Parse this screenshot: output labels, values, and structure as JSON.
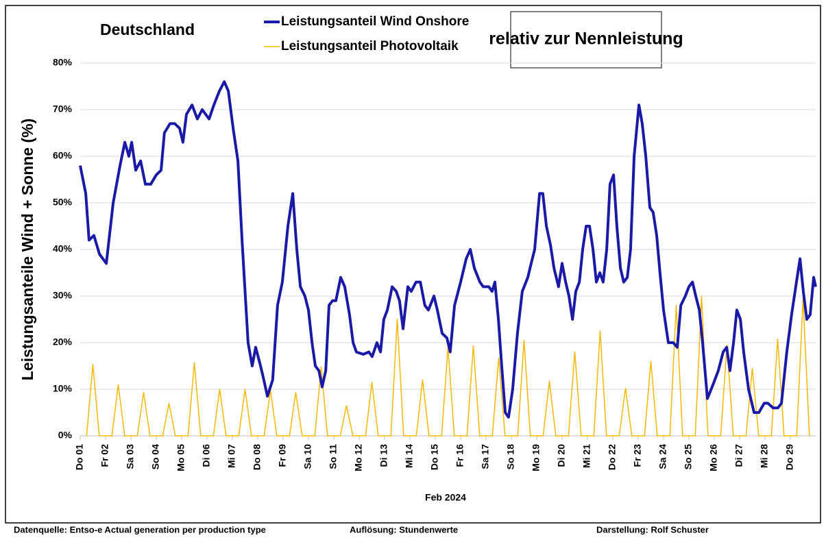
{
  "chart_data": {
    "type": "line",
    "title": "Deutschland",
    "annotation": "relativ zur Nennleistung",
    "ylabel": "Leistungsanteile Wind + Sonne (%)",
    "xlabel": "Feb 2024",
    "footer": [
      "Datenquelle: Entso-e  Actual generation per production type",
      "Auflösung: Stundenwerte",
      "Darstellung:  Rolf Schuster"
    ],
    "xlim": [
      0,
      29
    ],
    "ylim": [
      0,
      80
    ],
    "yticks": [
      {
        "value": 0,
        "label": "0%"
      },
      {
        "value": 10,
        "label": "10%"
      },
      {
        "value": 20,
        "label": "20%"
      },
      {
        "value": 30,
        "label": "30%"
      },
      {
        "value": 40,
        "label": "40%"
      },
      {
        "value": 50,
        "label": "50%"
      },
      {
        "value": 60,
        "label": "60%"
      },
      {
        "value": 70,
        "label": "70%"
      },
      {
        "value": 80,
        "label": "80%"
      }
    ],
    "xticks": [
      {
        "value": 0,
        "label": "Do 01"
      },
      {
        "value": 1,
        "label": "Fr 02"
      },
      {
        "value": 2,
        "label": "Sa 03"
      },
      {
        "value": 3,
        "label": "So 04"
      },
      {
        "value": 4,
        "label": "Mo 05"
      },
      {
        "value": 5,
        "label": "Di 06"
      },
      {
        "value": 6,
        "label": "Mi 07"
      },
      {
        "value": 7,
        "label": "Do 08"
      },
      {
        "value": 8,
        "label": "Fr 09"
      },
      {
        "value": 9,
        "label": "Sa 10"
      },
      {
        "value": 10,
        "label": "So 11"
      },
      {
        "value": 11,
        "label": "Mo 12"
      },
      {
        "value": 12,
        "label": "Di 13"
      },
      {
        "value": 13,
        "label": "Mi 14"
      },
      {
        "value": 14,
        "label": "Do 15"
      },
      {
        "value": 15,
        "label": "Fr 16"
      },
      {
        "value": 16,
        "label": "Sa 17"
      },
      {
        "value": 17,
        "label": "So 18"
      },
      {
        "value": 18,
        "label": "Mo 19"
      },
      {
        "value": 19,
        "label": "Di 20"
      },
      {
        "value": 20,
        "label": "Mi 21"
      },
      {
        "value": 21,
        "label": "Do 22"
      },
      {
        "value": 22,
        "label": "Fr 23"
      },
      {
        "value": 23,
        "label": "Sa 24"
      },
      {
        "value": 24,
        "label": "So 25"
      },
      {
        "value": 25,
        "label": "Mo 26"
      },
      {
        "value": 26,
        "label": "Di 27"
      },
      {
        "value": 27,
        "label": "Mi 28"
      },
      {
        "value": 28,
        "label": "Do 29"
      }
    ],
    "grid": true,
    "series": [
      {
        "name": "Leistungsanteil Photovoltaik",
        "color": "#f5b800",
        "width": 1.5,
        "x": [
          0.25,
          0.5,
          0.75,
          1.25,
          1.5,
          1.75,
          2.25,
          2.5,
          2.75,
          3.25,
          3.5,
          3.75,
          4.25,
          4.5,
          4.75,
          5.25,
          5.5,
          5.75,
          6.25,
          6.5,
          6.75,
          7.25,
          7.5,
          7.75,
          8.25,
          8.5,
          8.75,
          9.25,
          9.5,
          9.75,
          10.25,
          10.5,
          10.75,
          11.25,
          11.5,
          11.75,
          12.25,
          12.5,
          12.75,
          13.25,
          13.5,
          13.75,
          14.25,
          14.5,
          14.75,
          15.25,
          15.5,
          15.75,
          16.25,
          16.5,
          16.75,
          17.25,
          17.5,
          17.75,
          18.25,
          18.5,
          18.75,
          19.25,
          19.5,
          19.75,
          20.25,
          20.5,
          20.75,
          21.25,
          21.5,
          21.75,
          22.25,
          22.5,
          22.75,
          23.25,
          23.5,
          23.75,
          24.25,
          24.5,
          24.75,
          25.25,
          25.5,
          25.75,
          26.25,
          26.5,
          26.75,
          27.25,
          27.5,
          27.75,
          28.25,
          28.5,
          28.75
        ],
        "values": [
          0,
          15.3,
          0,
          0,
          11,
          0,
          0,
          9.3,
          0,
          0,
          7,
          0,
          0,
          15.7,
          0,
          0,
          10,
          0,
          0,
          10,
          0,
          0,
          9.8,
          0,
          0,
          9.3,
          0,
          0,
          14.8,
          0,
          0,
          6.5,
          0,
          0,
          11.5,
          0,
          0,
          25,
          0,
          0,
          12,
          0,
          0,
          19,
          0,
          0,
          19.3,
          0,
          0,
          16.7,
          0,
          0,
          20.5,
          0,
          0,
          11.7,
          0,
          0,
          18,
          0,
          0,
          22.5,
          0,
          0,
          10.2,
          0,
          0,
          16,
          0,
          0,
          28,
          0,
          0,
          30,
          0,
          0,
          19.5,
          0,
          0,
          14.5,
          0,
          0,
          20.8,
          0,
          0,
          29.5,
          0
        ]
      },
      {
        "name": "Leistungsanteil Wind Onshore",
        "color": "#1a1aa6",
        "width": 4,
        "x": [
          0,
          0.22,
          0.35,
          0.54,
          0.76,
          1.03,
          1.3,
          1.57,
          1.76,
          1.92,
          2.03,
          2.19,
          2.38,
          2.57,
          2.78,
          3.0,
          3.19,
          3.32,
          3.54,
          3.73,
          3.92,
          4.05,
          4.19,
          4.41,
          4.62,
          4.81,
          5.08,
          5.27,
          5.49,
          5.68,
          5.84,
          6.03,
          6.22,
          6.38,
          6.51,
          6.62,
          6.78,
          6.92,
          7.11,
          7.24,
          7.38,
          7.59,
          7.78,
          7.97,
          8.19,
          8.38,
          8.54,
          8.68,
          8.86,
          9.0,
          9.14,
          9.27,
          9.41,
          9.54,
          9.68,
          9.81,
          9.95,
          10.08,
          10.27,
          10.43,
          10.62,
          10.76,
          10.89,
          11.16,
          11.38,
          11.51,
          11.7,
          11.84,
          11.97,
          12.11,
          12.3,
          12.46,
          12.59,
          12.73,
          12.92,
          13.05,
          13.24,
          13.41,
          13.59,
          13.73,
          13.95,
          14.08,
          14.27,
          14.46,
          14.59,
          14.76,
          15.0,
          15.22,
          15.38,
          15.54,
          15.76,
          15.89,
          16.11,
          16.24,
          16.35,
          16.49,
          16.62,
          16.76,
          16.89,
          17.05,
          17.24,
          17.43,
          17.65,
          17.78,
          17.92,
          18.11,
          18.24,
          18.38,
          18.54,
          18.68,
          18.86,
          19.0,
          19.14,
          19.27,
          19.41,
          19.54,
          19.68,
          19.81,
          19.95,
          20.08,
          20.22,
          20.35,
          20.49,
          20.62,
          20.76,
          20.89,
          21.03,
          21.16,
          21.3,
          21.43,
          21.57,
          21.7,
          21.84,
          22.03,
          22.16,
          22.3,
          22.46,
          22.59,
          22.73,
          22.86,
          23.0,
          23.19,
          23.38,
          23.54,
          23.68,
          23.86,
          24.0,
          24.14,
          24.27,
          24.41,
          24.54,
          24.73,
          24.95,
          25.16,
          25.35,
          25.49,
          25.62,
          25.76,
          25.89,
          26.03,
          26.16,
          26.35,
          26.57,
          26.76,
          26.97,
          27.11,
          27.32,
          27.51,
          27.65,
          27.86,
          28.05,
          28.24,
          28.38,
          28.51,
          28.65,
          28.78,
          28.92,
          29.0
        ],
        "values": [
          58,
          52,
          42,
          43,
          39,
          37,
          50,
          58,
          63,
          60,
          63,
          57,
          59,
          54,
          54,
          56,
          57,
          65,
          67,
          67,
          66,
          63,
          69,
          71,
          68,
          70,
          68,
          71,
          74,
          76,
          74,
          66,
          59,
          42,
          30,
          20,
          15,
          19,
          15,
          12,
          8.5,
          12,
          28,
          33,
          45,
          52,
          40,
          32,
          30,
          27,
          20,
          15,
          14,
          10.5,
          14,
          28,
          29,
          29,
          34,
          32,
          26,
          20,
          18,
          17.5,
          18,
          17,
          20,
          18,
          25,
          27,
          32,
          31,
          29,
          23,
          32,
          31,
          33,
          33,
          28,
          27,
          30,
          27,
          22,
          21,
          18,
          28,
          33,
          38,
          40,
          36,
          33,
          32,
          32,
          31,
          33,
          25,
          15,
          5,
          4,
          10,
          22,
          31,
          34,
          37,
          40,
          52,
          52,
          45,
          41,
          36,
          32,
          37,
          33,
          30,
          25,
          31,
          33,
          40,
          45,
          45,
          40,
          33,
          35,
          33,
          40,
          54,
          56,
          45,
          36,
          33,
          34,
          40,
          60,
          71,
          67,
          60,
          49,
          48,
          43,
          35,
          27,
          20,
          20,
          19,
          28,
          30,
          32,
          33,
          30,
          27,
          20,
          8,
          11,
          14,
          18,
          19,
          14,
          20,
          27,
          25,
          18,
          10,
          5,
          5,
          7,
          7,
          6,
          6,
          7,
          18,
          26,
          33,
          38,
          31,
          25,
          26,
          34,
          32
        ]
      }
    ]
  }
}
